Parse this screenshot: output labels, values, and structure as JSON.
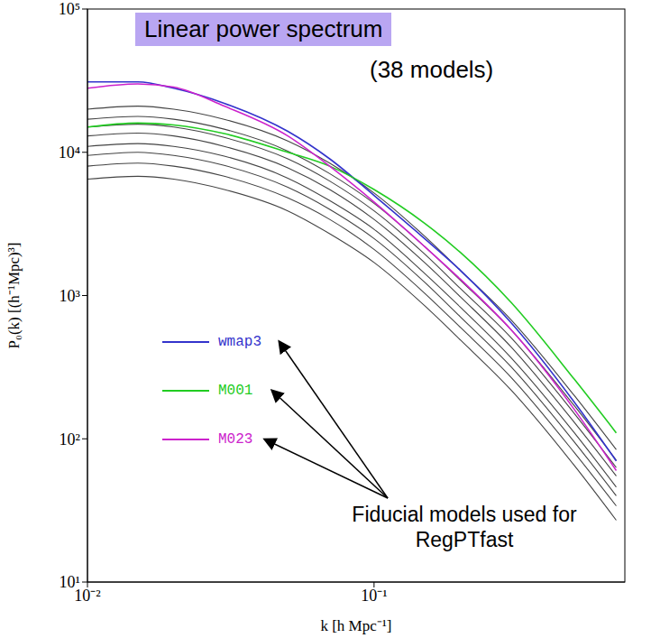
{
  "chart_data": {
    "type": "line",
    "title": "Linear power spectrum",
    "annotations": [
      "(38 models)",
      "Fiducial models used for RegPTfast"
    ],
    "x_label": "k [h Mpc⁻¹]",
    "y_label": "P₀(k) [(h⁻¹Mpc)³]",
    "log": true,
    "grid": false,
    "legend": "lower left",
    "x": [
      0.01,
      0.015,
      0.02,
      0.03,
      0.05,
      0.07,
      0.1,
      0.15,
      0.2,
      0.3,
      0.5,
      0.7
    ],
    "xlim": [
      0.01,
      0.75
    ],
    "xticks": [
      {
        "value": 0.01,
        "label": "10⁻²"
      },
      {
        "value": 0.1,
        "label": "10⁻¹"
      }
    ],
    "ylim": [
      10,
      100000
    ],
    "yticks": [
      {
        "value": 10,
        "label": "10¹"
      },
      {
        "value": 100,
        "label": "10²"
      },
      {
        "value": 1000,
        "label": "10³"
      },
      {
        "value": 10000,
        "label": "10⁴"
      },
      {
        "value": 100000,
        "label": "10⁵"
      }
    ],
    "series": [
      {
        "color": "#444444",
        "values": [
          20000,
          21000,
          20000,
          17000,
          12000,
          8400,
          5200,
          2600,
          1500,
          680,
          200,
          84
        ]
      },
      {
        "color": "#444444",
        "values": [
          17000,
          17800,
          17000,
          14500,
          10200,
          7100,
          4400,
          2200,
          1280,
          580,
          170,
          71
        ]
      },
      {
        "color": "#444444",
        "values": [
          15000,
          15700,
          15000,
          12700,
          9000,
          6300,
          3900,
          1950,
          1120,
          510,
          150,
          63
        ]
      },
      {
        "color": "#444444",
        "values": [
          13000,
          13600,
          13000,
          11000,
          7800,
          5500,
          3400,
          1700,
          980,
          440,
          130,
          55
        ]
      },
      {
        "color": "#444444",
        "values": [
          11000,
          11500,
          11000,
          9400,
          6600,
          4600,
          2900,
          1430,
          830,
          370,
          110,
          46
        ]
      },
      {
        "color": "#444444",
        "values": [
          9500,
          10000,
          9500,
          8100,
          5700,
          4000,
          2500,
          1240,
          710,
          320,
          95,
          40
        ]
      },
      {
        "color": "#444444",
        "values": [
          8000,
          8400,
          8000,
          6800,
          4800,
          3400,
          2100,
          1040,
          600,
          270,
          80,
          34
        ]
      },
      {
        "color": "#444444",
        "values": [
          6500,
          6800,
          6500,
          5500,
          3900,
          2700,
          1700,
          850,
          490,
          220,
          65,
          27
        ]
      },
      {
        "name": "wmap3",
        "color": "#3333cc",
        "values": [
          31000,
          31000,
          28000,
          22000,
          14000,
          9000,
          5000,
          2500,
          1500,
          650,
          180,
          70
        ]
      },
      {
        "name": "M001",
        "color": "#22cc22",
        "values": [
          15000,
          16000,
          15500,
          13500,
          10000,
          8000,
          5500,
          3200,
          2000,
          900,
          260,
          110
        ]
      },
      {
        "name": "M023",
        "color": "#cc22cc",
        "values": [
          28000,
          30000,
          28500,
          21000,
          13000,
          8000,
          4500,
          2200,
          1300,
          580,
          160,
          60
        ]
      }
    ]
  }
}
